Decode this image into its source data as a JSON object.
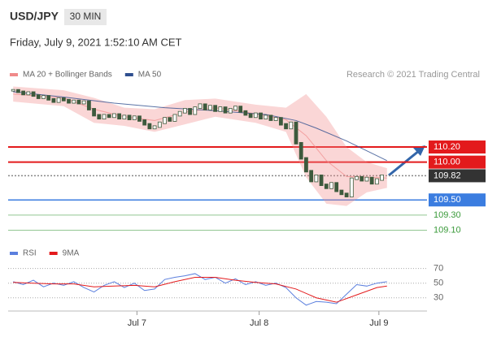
{
  "header": {
    "symbol": "USD/JPY",
    "interval": "30 MIN",
    "datetime": "Friday, July 9, 2021 1:52:10 AM CET",
    "source": "Research © 2021 Trading Central"
  },
  "chart_data": [
    {
      "type": "candlestick",
      "color": "#3d5a3d",
      "values": [
        110.95,
        110.93,
        110.9,
        110.92,
        110.88,
        110.85,
        110.87,
        110.83,
        110.8,
        110.84,
        110.82,
        110.79,
        110.81,
        110.78,
        110.8,
        110.7,
        110.62,
        110.58,
        110.62,
        110.6,
        110.63,
        110.58,
        110.61,
        110.57,
        110.6,
        110.55,
        110.5,
        110.45,
        110.47,
        110.52,
        110.58,
        110.55,
        110.62,
        110.66,
        110.7,
        110.64,
        110.72,
        110.76,
        110.7,
        110.74,
        110.68,
        110.72,
        110.66,
        110.7,
        110.73,
        110.67,
        110.63,
        110.6,
        110.64,
        110.58,
        110.61,
        110.56,
        110.58,
        110.5,
        110.45,
        110.52,
        110.25,
        110.05,
        109.88,
        109.75,
        109.82,
        109.7,
        109.66,
        109.72,
        109.62,
        109.58,
        109.55,
        109.78,
        109.8,
        109.76,
        109.79,
        109.72,
        109.77,
        109.82
      ],
      "series": [
        {
          "name": "MA 20 + Bollinger Bands",
          "color": "#f08a8a",
          "x": [
            0,
            10,
            16,
            22,
            28,
            34,
            40,
            48,
            54,
            58,
            62,
            66,
            70,
            74
          ],
          "values": [
            110.9,
            110.85,
            110.7,
            110.6,
            110.55,
            110.66,
            110.72,
            110.64,
            110.56,
            110.35,
            110.02,
            109.81,
            109.8,
            109.79
          ],
          "upper": [
            111.0,
            110.95,
            110.85,
            110.72,
            110.7,
            110.82,
            110.84,
            110.76,
            110.72,
            110.9,
            110.6,
            110.2,
            110.0,
            109.92
          ],
          "lower": [
            110.8,
            110.74,
            110.52,
            110.48,
            110.4,
            110.5,
            110.6,
            110.52,
            110.4,
            109.8,
            109.45,
            109.42,
            109.6,
            109.66
          ]
        },
        {
          "name": "MA 50",
          "color": "#2f4f8f",
          "x": [
            0,
            10,
            20,
            30,
            40,
            50,
            56,
            60,
            66,
            70,
            74
          ],
          "values": [
            110.93,
            110.86,
            110.78,
            110.72,
            110.68,
            110.63,
            110.55,
            110.45,
            110.28,
            110.15,
            110.02
          ]
        }
      ],
      "levels": [
        {
          "value": 110.2,
          "label": "110.20",
          "color": "#e31a1c",
          "box": true
        },
        {
          "value": 110.0,
          "label": "110.00",
          "color": "#e31a1c",
          "box": true
        },
        {
          "value": 109.82,
          "label": "109.82",
          "color": "#333333",
          "box": true,
          "dash": true
        },
        {
          "value": 109.5,
          "label": "109.50",
          "color": "#3b7de0",
          "box": true
        },
        {
          "value": 109.3,
          "label": "109.30",
          "color": "#3a9a3a",
          "box": false
        },
        {
          "value": 109.1,
          "label": "109.10",
          "color": "#3a9a3a",
          "box": false
        }
      ],
      "xlim": [
        -1,
        75
      ],
      "ylim": [
        109.03,
        111.07
      ]
    },
    {
      "type": "line",
      "series": [
        {
          "name": "RSI",
          "color": "#5b7fde",
          "x": [
            0,
            2,
            4,
            6,
            8,
            10,
            12,
            14,
            16,
            18,
            20,
            22,
            24,
            26,
            28,
            30,
            32,
            34,
            36,
            38,
            40,
            42,
            44,
            46,
            48,
            50,
            52,
            54,
            56,
            58,
            60,
            62,
            64,
            66,
            68,
            70,
            72,
            74
          ],
          "values": [
            52,
            48,
            54,
            45,
            50,
            47,
            52,
            44,
            38,
            47,
            52,
            44,
            50,
            40,
            42,
            55,
            58,
            60,
            63,
            55,
            58,
            50,
            56,
            48,
            52,
            47,
            50,
            44,
            30,
            20,
            25,
            24,
            22,
            35,
            48,
            46,
            50,
            52
          ]
        },
        {
          "name": "9MA",
          "color": "#e31a1c",
          "x": [
            0,
            4,
            8,
            12,
            16,
            20,
            24,
            28,
            32,
            36,
            40,
            44,
            48,
            52,
            56,
            60,
            64,
            68,
            72,
            74
          ],
          "values": [
            51,
            50,
            49,
            49,
            45,
            46,
            47,
            45,
            52,
            58,
            58,
            54,
            51,
            49,
            42,
            30,
            24,
            34,
            44,
            46
          ]
        }
      ],
      "xlim": [
        -1,
        75
      ],
      "ylim": [
        12,
        84
      ],
      "yticks": [
        30,
        50,
        70
      ],
      "xticks": [
        {
          "value": 24.5,
          "label": "Jul 7"
        },
        {
          "value": 48.7,
          "label": "Jul 8"
        },
        {
          "value": 72.4,
          "label": "Jul 9"
        }
      ]
    }
  ]
}
